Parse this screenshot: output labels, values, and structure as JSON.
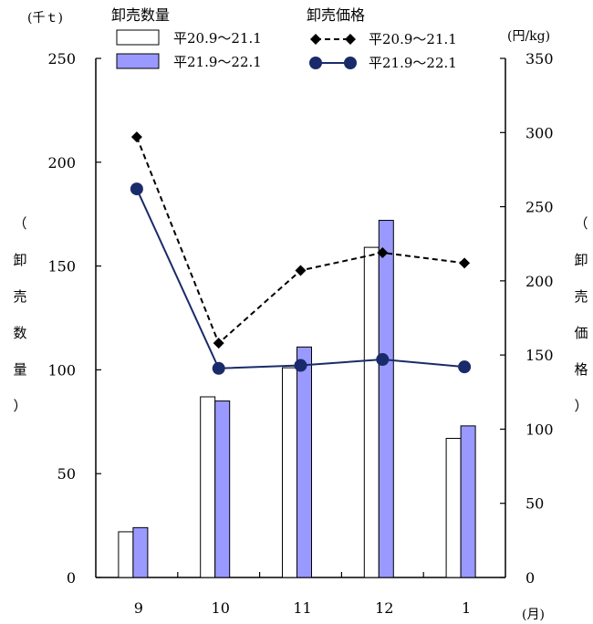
{
  "chart_data": {
    "type": "bar",
    "categories": [
      "9",
      "10",
      "11",
      "12",
      "1"
    ],
    "x_unit": "(月)",
    "y_left": {
      "unit": "(千ｔ)",
      "label_chars": [
        "（",
        "卸",
        "売",
        "数",
        "量",
        "）"
      ],
      "ylim": [
        0,
        250
      ],
      "ticks": [
        0,
        50,
        100,
        150,
        200,
        250
      ]
    },
    "y_right": {
      "unit": "(円/kg)",
      "label_chars": [
        "（",
        "卸",
        "売",
        "価",
        "格",
        "）"
      ],
      "ylim": [
        0,
        350
      ],
      "ticks": [
        0,
        50,
        100,
        150,
        200,
        250,
        300,
        350
      ]
    },
    "legend": {
      "bar_group_title": "卸売数量",
      "line_group_title": "卸売価格"
    },
    "bar_series": [
      {
        "name": "平20.9～21.1",
        "color": "#ffffff",
        "values": [
          22,
          87,
          101,
          159,
          67
        ]
      },
      {
        "name": "平21.9～22.1",
        "color": "#9999ff",
        "values": [
          24,
          85,
          111,
          172,
          73
        ]
      }
    ],
    "line_series": [
      {
        "name": "平20.9～21.1",
        "color": "#000000",
        "style": "dashed",
        "marker": "diamond",
        "values": [
          297,
          158,
          207,
          219,
          212
        ]
      },
      {
        "name": "平21.9～22.1",
        "color": "#1a2b6b",
        "style": "solid",
        "marker": "circle",
        "values": [
          262,
          141,
          143,
          147,
          142
        ]
      }
    ],
    "grid": false
  }
}
